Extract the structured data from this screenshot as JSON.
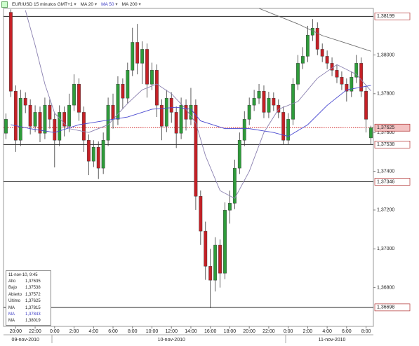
{
  "chart_data": {
    "type": "candlestick",
    "series": [
      {
        "name": "EUR/USD 15 minutos GMT+1",
        "open": [
          1.37596,
          1.3822,
          1.37813,
          1.3756,
          1.37777,
          1.37741,
          1.37632,
          1.37704,
          1.37596,
          1.37741,
          1.37668,
          1.3756,
          1.37704,
          1.37632,
          1.37741,
          1.37849,
          1.37704,
          1.3756,
          1.37452,
          1.37524,
          1.37416,
          1.3756,
          1.37741,
          1.37668,
          1.37849,
          1.37777,
          1.37921,
          1.38065,
          1.37957,
          1.38029,
          1.37849,
          1.37921,
          1.37741,
          1.37632,
          1.37777,
          1.37704,
          1.37596,
          1.37741,
          1.37668,
          1.37741,
          1.37271,
          1.37091,
          1.3691,
          1.36838,
          1.37019,
          1.36874,
          1.37199,
          1.37235,
          1.37416,
          1.3756,
          1.37668,
          1.37741,
          1.37777,
          1.37813,
          1.37704,
          1.37777,
          1.37741,
          1.37704,
          1.3756,
          1.37668,
          1.37849,
          1.37957,
          1.37993,
          1.38102,
          1.38138,
          1.38029,
          1.37993,
          1.37957,
          1.37921,
          1.37885,
          1.37849,
          1.37813,
          1.37885,
          1.37957,
          1.37813,
          1.37572
        ],
        "high": [
          1.37698,
          1.38235,
          1.37843,
          1.3782,
          1.37807,
          1.37771,
          1.3774,
          1.37734,
          1.3778,
          1.37771,
          1.37698,
          1.3774,
          1.37734,
          1.378,
          1.379,
          1.37879,
          1.37734,
          1.3759,
          1.3756,
          1.37554,
          1.376,
          1.3778,
          1.378,
          1.3789,
          1.37879,
          1.3796,
          1.3814,
          1.3816,
          1.3807,
          1.38059,
          1.3796,
          1.37951,
          1.37771,
          1.3782,
          1.37807,
          1.37734,
          1.3778,
          1.37771,
          1.3783,
          1.37771,
          1.37301,
          1.3714,
          1.37,
          1.3706,
          1.37049,
          1.3724,
          1.373,
          1.3746,
          1.376,
          1.3771,
          1.3778,
          1.3782,
          1.3785,
          1.37843,
          1.3781,
          1.37807,
          1.37771,
          1.37734,
          1.377,
          1.3788,
          1.38,
          1.3804,
          1.3815,
          1.38185,
          1.38168,
          1.38059,
          1.38023,
          1.37987,
          1.37951,
          1.37915,
          1.37879,
          1.37915,
          1.38,
          1.37987,
          1.37843,
          1.37635
        ],
        "low": [
          1.37566,
          1.37783,
          1.375,
          1.3753,
          1.377,
          1.3759,
          1.37602,
          1.3755,
          1.37566,
          1.3762,
          1.3742,
          1.3753,
          1.3758,
          1.37602,
          1.37711,
          1.3766,
          1.375,
          1.3738,
          1.37422,
          1.3736,
          1.37386,
          1.3753,
          1.3762,
          1.37638,
          1.3772,
          1.37747,
          1.37891,
          1.379,
          1.3785,
          1.3778,
          1.37819,
          1.3768,
          1.3756,
          1.37602,
          1.3765,
          1.3752,
          1.37566,
          1.3761,
          1.37638,
          1.372,
          1.3702,
          1.3684,
          1.36694,
          1.3678,
          1.368,
          1.36844,
          1.3713,
          1.37205,
          1.37386,
          1.3753,
          1.37638,
          1.37711,
          1.37747,
          1.37674,
          1.37674,
          1.37711,
          1.37674,
          1.37538,
          1.37538,
          1.37638,
          1.37819,
          1.37927,
          1.37963,
          1.38072,
          1.37999,
          1.37963,
          1.37927,
          1.37891,
          1.37855,
          1.37819,
          1.3776,
          1.37783,
          1.37855,
          1.37783,
          1.376,
          1.37538
        ],
        "close": [
          1.37668,
          1.37813,
          1.3756,
          1.37777,
          1.37741,
          1.37632,
          1.37704,
          1.37596,
          1.37741,
          1.37668,
          1.3756,
          1.37704,
          1.37632,
          1.37741,
          1.37849,
          1.37704,
          1.3756,
          1.37452,
          1.37524,
          1.37416,
          1.3756,
          1.37741,
          1.37668,
          1.37849,
          1.37777,
          1.37921,
          1.38065,
          1.37957,
          1.38029,
          1.37849,
          1.37921,
          1.37741,
          1.37632,
          1.37777,
          1.37704,
          1.37596,
          1.37741,
          1.37668,
          1.37741,
          1.37271,
          1.37091,
          1.3691,
          1.36838,
          1.37019,
          1.36874,
          1.37199,
          1.37235,
          1.37416,
          1.3756,
          1.37668,
          1.37741,
          1.37777,
          1.37813,
          1.37704,
          1.37777,
          1.37741,
          1.37704,
          1.3756,
          1.37668,
          1.37849,
          1.37957,
          1.37993,
          1.38102,
          1.38138,
          1.38029,
          1.37993,
          1.37957,
          1.37921,
          1.37885,
          1.37849,
          1.37813,
          1.37885,
          1.37957,
          1.37813,
          1.37668,
          1.37625
        ]
      }
    ],
    "up_color": "#2e9b3a",
    "down_color": "#c42026",
    "moving_averages": [
      {
        "name": "MA 20",
        "color": "#8a80b0",
        "x": [
          4,
          6,
          8,
          10,
          13,
          17,
          21,
          25,
          28,
          31,
          34,
          37,
          39,
          41,
          44,
          47,
          50,
          53,
          56,
          60,
          64,
          68,
          72,
          75
        ],
        "values": [
          1.3823,
          1.3805,
          1.3785,
          1.377,
          1.3762,
          1.376,
          1.3764,
          1.3775,
          1.3782,
          1.3785,
          1.378,
          1.3772,
          1.3765,
          1.3748,
          1.373,
          1.3726,
          1.374,
          1.376,
          1.3772,
          1.3776,
          1.3788,
          1.3795,
          1.379,
          1.37815
        ]
      },
      {
        "name": "MA 50",
        "color": "#4a4ad0",
        "x": [
          1,
          5,
          10,
          15,
          20,
          25,
          30,
          35,
          38,
          40,
          45,
          50,
          55,
          58,
          62,
          66,
          70,
          75
        ],
        "values": [
          1.3764,
          1.3762,
          1.376,
          1.3764,
          1.3766,
          1.3768,
          1.3772,
          1.3773,
          1.3772,
          1.3766,
          1.3762,
          1.3762,
          1.376,
          1.3758,
          1.3764,
          1.3774,
          1.3782,
          1.37843
        ]
      },
      {
        "name": "MA 200",
        "color": "#6e6e6e",
        "x": [
          52,
          55,
          60,
          65,
          70,
          75
        ],
        "values": [
          1.3824,
          1.3821,
          1.3816,
          1.381,
          1.3806,
          1.38019
        ]
      }
    ],
    "categories": [
      null,
      null,
      "20:00",
      null,
      null,
      null,
      "22:00",
      null,
      null,
      null,
      "0:00",
      null,
      null,
      null,
      "2:00",
      null,
      null,
      null,
      "4:00",
      null,
      null,
      null,
      "6:00",
      null,
      null,
      null,
      "8:00",
      null,
      null,
      null,
      "10:00",
      null,
      null,
      null,
      "12:00",
      null,
      null,
      null,
      "14:00",
      null,
      null,
      null,
      "16:00",
      null,
      null,
      null,
      "18:00",
      null,
      null,
      null,
      "20:00",
      null,
      null,
      null,
      "22:00",
      null,
      null,
      null,
      "0:00",
      null,
      null,
      null,
      "2:00",
      null,
      null,
      null,
      "4:00",
      null,
      null,
      null,
      "6:00",
      null,
      null,
      null,
      "8:00",
      null
    ],
    "date_categories": [
      null,
      null,
      null,
      null,
      "09-nov-2010",
      null,
      null,
      null,
      null,
      null,
      null,
      null,
      null,
      null,
      null,
      null,
      null,
      null,
      null,
      null,
      null,
      null,
      null,
      null,
      null,
      null,
      null,
      null,
      null,
      null,
      null,
      null,
      null,
      null,
      "10-nov-2010",
      null,
      null,
      null,
      null,
      null,
      null,
      null,
      null,
      null,
      null,
      null,
      null,
      null,
      null,
      null,
      null,
      null,
      null,
      null,
      null,
      null,
      null,
      null,
      null,
      null,
      null,
      null,
      null,
      null,
      null,
      null,
      null,
      "11-nov-2010",
      null,
      null,
      null,
      null,
      null,
      null,
      null,
      null
    ],
    "ylim": [
      1.366,
      1.3824
    ],
    "yticks": [
      {
        "value": 1.38,
        "label": "1,38000"
      },
      {
        "value": 1.378,
        "label": "1,37800"
      },
      {
        "value": 1.376,
        "label": "1,37600"
      },
      {
        "value": 1.374,
        "label": "1,37400"
      },
      {
        "value": 1.372,
        "label": "1,37200"
      },
      {
        "value": 1.37,
        "label": "1,37000"
      },
      {
        "value": 1.368,
        "label": "1,36800"
      }
    ],
    "price_lines": [
      {
        "value": 1.38199,
        "label": "1,38199",
        "color": "#222",
        "style": "solid"
      },
      {
        "value": 1.37625,
        "label": "1,37625",
        "color": "#d02020",
        "style": "dotted"
      },
      {
        "value": 1.37538,
        "label": "1,37538",
        "color": "#222",
        "style": "solid"
      },
      {
        "value": 1.37346,
        "label": "1,37346",
        "color": "#222",
        "style": "solid"
      },
      {
        "value": 1.36698,
        "label": "1,36698",
        "color": "#222",
        "style": "solid"
      }
    ],
    "info_box": {
      "title": "11-nov-10, 9:45",
      "rows": [
        {
          "label": "Alto",
          "value": "1,37635"
        },
        {
          "label": "Bajo",
          "value": "1,37538"
        },
        {
          "label": "Abierto",
          "value": "1,37572"
        },
        {
          "label": "Último",
          "value": "1,37625"
        },
        {
          "label": "MA",
          "value": "1,37815"
        },
        {
          "label": "MA",
          "value": "1,37843"
        },
        {
          "label": "MA",
          "value": "1,38019"
        }
      ]
    }
  }
}
